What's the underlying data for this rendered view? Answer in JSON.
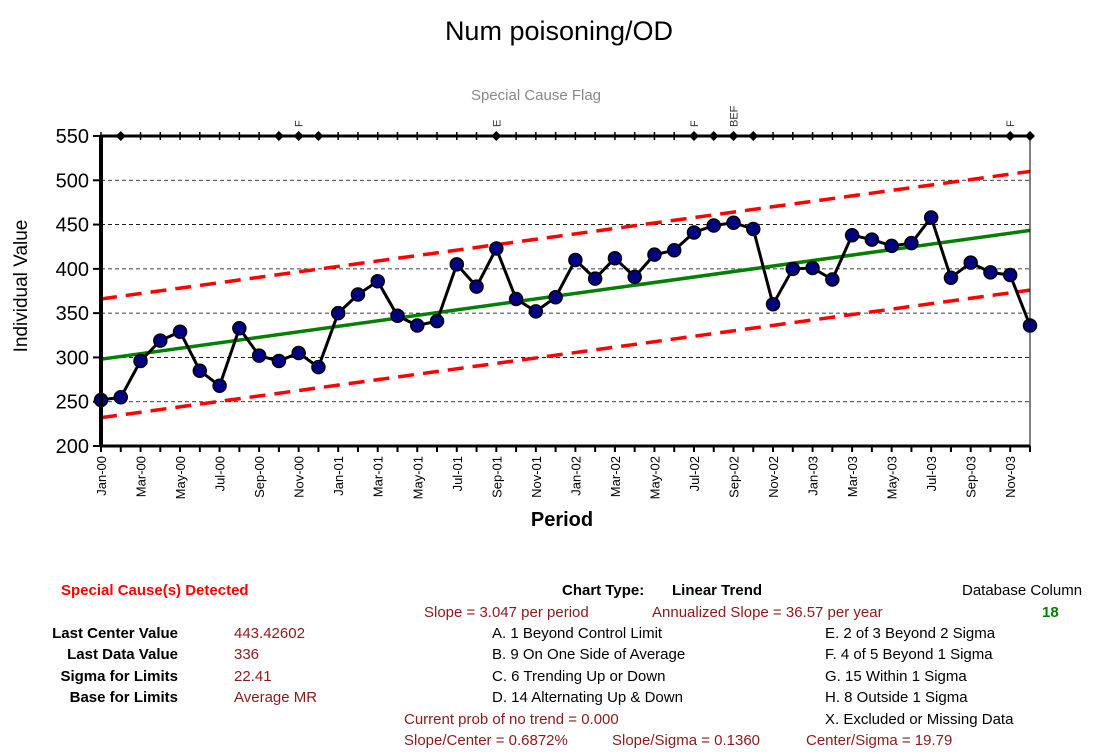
{
  "chart_data": {
    "type": "line",
    "title": "Num poisoning/OD",
    "xlabel": "Period",
    "ylabel": "Individual Value",
    "ylim": [
      200,
      550
    ],
    "yticks": [
      200,
      250,
      300,
      350,
      400,
      450,
      500,
      550
    ],
    "grid": "horizontal dashed",
    "categories": [
      "Jan-00",
      "Feb-00",
      "Mar-00",
      "Apr-00",
      "May-00",
      "Jun-00",
      "Jul-00",
      "Aug-00",
      "Sep-00",
      "Oct-00",
      "Nov-00",
      "Dec-00",
      "Jan-01",
      "Feb-01",
      "Mar-01",
      "Apr-01",
      "May-01",
      "Jun-01",
      "Jul-01",
      "Aug-01",
      "Sep-01",
      "Oct-01",
      "Nov-01",
      "Dec-01",
      "Jan-02",
      "Feb-02",
      "Mar-02",
      "Apr-02",
      "May-02",
      "Jun-02",
      "Jul-02",
      "Aug-02",
      "Sep-02",
      "Oct-02",
      "Nov-02",
      "Dec-02",
      "Jan-03",
      "Feb-03",
      "Mar-03",
      "Apr-03",
      "May-03",
      "Jun-03",
      "Jul-03",
      "Aug-03",
      "Sep-03",
      "Oct-03",
      "Nov-03",
      "Dec-03"
    ],
    "tick_labels": [
      "Jan-00",
      "Mar-00",
      "May-00",
      "Jul-00",
      "Sep-00",
      "Nov-00",
      "Jan-01",
      "Mar-01",
      "May-01",
      "Jul-01",
      "Sep-01",
      "Nov-01",
      "Jan-02",
      "Mar-02",
      "May-02",
      "Jul-02",
      "Sep-02",
      "Nov-02",
      "Jan-03",
      "Mar-03",
      "May-03",
      "Jul-03",
      "Sep-03",
      "Nov-03"
    ],
    "series": [
      {
        "values": [
          252,
          255,
          296,
          319,
          329,
          285,
          268,
          333,
          302,
          296,
          305,
          289,
          350,
          371,
          386,
          347,
          336,
          341,
          405,
          380,
          423,
          366,
          352,
          368,
          410,
          389,
          412,
          391,
          416,
          421,
          441,
          449,
          452,
          445,
          360,
          400,
          401,
          388,
          438,
          433,
          426,
          429,
          458,
          390,
          407,
          396,
          393,
          336
        ],
        "color": "#000080"
      }
    ],
    "trend_line": {
      "start": 298,
      "end": 443.4,
      "color": "#008000"
    },
    "upper_limit": {
      "start": 366,
      "end": 510,
      "color": "#ff0000"
    },
    "lower_limit": {
      "start": 232,
      "end": 376,
      "color": "#ff0000"
    },
    "special_cause_flag": {
      "title": "Special Cause Flag",
      "flags": [
        {
          "index": 10,
          "label": "F"
        },
        {
          "index": 20,
          "label": "E"
        },
        {
          "index": 30,
          "label": "F"
        },
        {
          "index": 32,
          "label": "BEF"
        },
        {
          "index": 46,
          "label": "F"
        }
      ],
      "markers": [
        1,
        9,
        10,
        11,
        20,
        30,
        31,
        32,
        33,
        46,
        47
      ]
    }
  },
  "info": {
    "special_cause": "Special Cause(s) Detected",
    "chart_type_label": "Chart Type:",
    "chart_type_value": "Linear Trend",
    "database_column_label": "Database Column",
    "database_column_value": "18",
    "slope": "Slope = 3.047 per period",
    "annualized_slope": "Annualized Slope = 36.57 per year",
    "stats": [
      {
        "label": "Last Center Value",
        "value": "443.42602"
      },
      {
        "label": "Last Data Value",
        "value": "336"
      },
      {
        "label": "Sigma for Limits",
        "value": "22.41"
      },
      {
        "label": "Base for Limits",
        "value": "Average MR"
      }
    ],
    "rules_left": [
      "A.  1 Beyond Control Limit",
      "B.  9 On One Side of Average",
      "C.  6 Trending Up or Down",
      "D.  14 Alternating  Up & Down"
    ],
    "rules_right": [
      "E.  2 of 3 Beyond 2 Sigma",
      "F.  4 of 5 Beyond 1 Sigma",
      "G.  15 Within 1 Sigma",
      "H.  8 Outside 1 Sigma",
      "X.  Excluded or Missing Data"
    ],
    "prob_no_trend": "Current prob of no trend = 0.000",
    "slope_center": "Slope/Center = 0.6872%",
    "slope_sigma": "Slope/Sigma = 0.1360",
    "center_sigma": "Center/Sigma = 19.79"
  }
}
